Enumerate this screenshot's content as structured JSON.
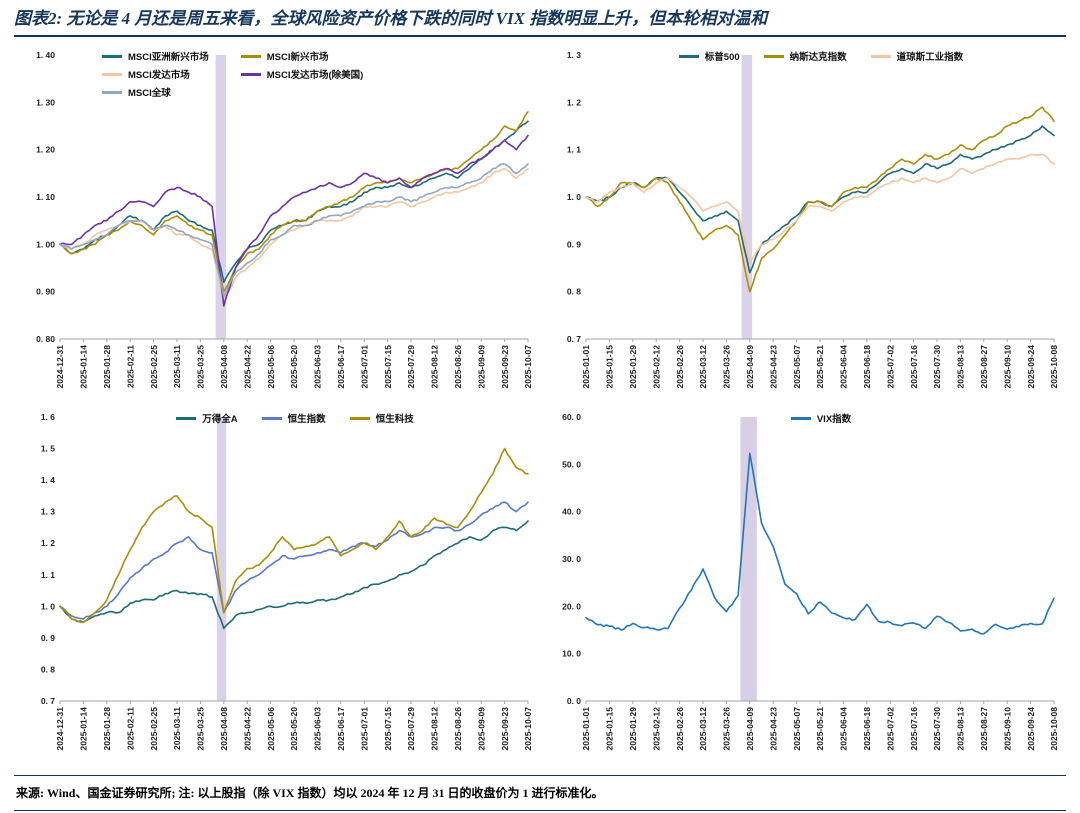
{
  "page": {
    "title": "图表2: 无论是 4 月还是周五来看，全球风险资产价格下跌的同时 VIX 指数明显上升，但本轮相对温和",
    "footer": "来源: Wind、国金证券研究所; 注: 以上股指（除 VIX 指数）均以 2024 年 12 月 31 日的收盘价为 1 进行标准化。",
    "accent_color": "#16365c"
  },
  "chart_data": [
    {
      "name": "msci-indices",
      "type": "line",
      "ylim": [
        0.8,
        1.4
      ],
      "yticks": [
        0.8,
        0.9,
        1.0,
        1.1,
        1.2,
        1.3,
        1.4
      ],
      "ytick_labels": [
        "0. 80",
        "0. 90",
        "1. 00",
        "1. 10",
        "1. 20",
        "1. 30",
        "1. 40"
      ],
      "xtick_every": 2,
      "highlight_band": {
        "from": 13.3,
        "to": 14.2,
        "from_date": "2025-04-02",
        "to_date": "2025-04-09",
        "color": "#cec3e0",
        "opacity": 0.75
      },
      "x_dates": [
        "2024-12-31",
        "2025-01-07",
        "2025-01-14",
        "2025-01-21",
        "2025-01-28",
        "2025-02-04",
        "2025-02-11",
        "2025-02-18",
        "2025-02-25",
        "2025-03-04",
        "2025-03-11",
        "2025-03-18",
        "2025-03-25",
        "2025-04-01",
        "2025-04-08",
        "2025-04-15",
        "2025-04-22",
        "2025-04-29",
        "2025-05-06",
        "2025-05-13",
        "2025-05-20",
        "2025-05-27",
        "2025-06-03",
        "2025-06-10",
        "2025-06-17",
        "2025-06-24",
        "2025-07-01",
        "2025-07-08",
        "2025-07-15",
        "2025-07-22",
        "2025-07-29",
        "2025-08-05",
        "2025-08-12",
        "2025-08-19",
        "2025-08-26",
        "2025-09-02",
        "2025-09-09",
        "2025-09-16",
        "2025-09-23",
        "2025-09-30",
        "2025-10-07"
      ],
      "series": [
        {
          "name": "MSCI亚洲新兴市场",
          "color": "#1d6a78",
          "values": [
            1.0,
            0.98,
            0.99,
            1.01,
            1.02,
            1.04,
            1.06,
            1.05,
            1.03,
            1.06,
            1.07,
            1.05,
            1.04,
            1.03,
            0.92,
            0.96,
            0.99,
            1.0,
            1.03,
            1.04,
            1.05,
            1.05,
            1.07,
            1.08,
            1.08,
            1.09,
            1.11,
            1.12,
            1.12,
            1.13,
            1.12,
            1.13,
            1.14,
            1.15,
            1.14,
            1.16,
            1.18,
            1.2,
            1.22,
            1.24,
            1.26
          ]
        },
        {
          "name": "MSCI新兴市场",
          "color": "#ab8d0a",
          "values": [
            1.0,
            0.98,
            0.99,
            1.0,
            1.02,
            1.03,
            1.05,
            1.04,
            1.02,
            1.05,
            1.06,
            1.04,
            1.03,
            1.02,
            0.9,
            0.95,
            0.98,
            0.99,
            1.02,
            1.04,
            1.05,
            1.05,
            1.07,
            1.08,
            1.09,
            1.1,
            1.12,
            1.13,
            1.13,
            1.14,
            1.13,
            1.14,
            1.15,
            1.16,
            1.16,
            1.18,
            1.2,
            1.22,
            1.25,
            1.24,
            1.28
          ]
        },
        {
          "name": "MSCI发达市场",
          "color": "#f2c6a2",
          "values": [
            1.0,
            0.99,
            1.0,
            1.02,
            1.03,
            1.04,
            1.05,
            1.05,
            1.03,
            1.04,
            1.02,
            1.02,
            1.0,
            0.99,
            0.88,
            0.93,
            0.95,
            0.97,
            1.0,
            1.02,
            1.03,
            1.04,
            1.05,
            1.05,
            1.05,
            1.06,
            1.08,
            1.08,
            1.08,
            1.09,
            1.08,
            1.09,
            1.1,
            1.11,
            1.11,
            1.12,
            1.13,
            1.15,
            1.16,
            1.14,
            1.16
          ]
        },
        {
          "name": "MSCI发达市场(除美国)",
          "color": "#7030a0",
          "values": [
            1.0,
            1.0,
            1.02,
            1.04,
            1.05,
            1.07,
            1.09,
            1.09,
            1.08,
            1.11,
            1.12,
            1.11,
            1.1,
            1.08,
            0.87,
            0.95,
            0.99,
            1.02,
            1.06,
            1.08,
            1.1,
            1.11,
            1.12,
            1.13,
            1.12,
            1.13,
            1.15,
            1.14,
            1.13,
            1.14,
            1.12,
            1.14,
            1.15,
            1.16,
            1.15,
            1.17,
            1.18,
            1.2,
            1.22,
            1.2,
            1.23
          ]
        },
        {
          "name": "MSCI全球",
          "color": "#8fa6c6",
          "values": [
            1.0,
            0.99,
            1.0,
            1.01,
            1.02,
            1.04,
            1.05,
            1.05,
            1.03,
            1.04,
            1.03,
            1.02,
            1.01,
            1.0,
            0.89,
            0.94,
            0.96,
            0.98,
            1.01,
            1.02,
            1.04,
            1.04,
            1.05,
            1.06,
            1.06,
            1.07,
            1.08,
            1.09,
            1.09,
            1.1,
            1.09,
            1.1,
            1.11,
            1.12,
            1.12,
            1.13,
            1.14,
            1.16,
            1.17,
            1.15,
            1.17
          ]
        }
      ]
    },
    {
      "name": "us-indices",
      "type": "line",
      "ylim": [
        0.7,
        1.3
      ],
      "yticks": [
        0.7,
        0.8,
        0.9,
        1.0,
        1.1,
        1.2,
        1.3
      ],
      "ytick_labels": [
        "0. 7",
        "0. 8",
        "0. 9",
        "1. 0",
        "1. 1",
        "1. 2",
        "1. 3"
      ],
      "xtick_every": 2,
      "highlight_band": {
        "from": 13.3,
        "to": 14.2,
        "from_date": "2025-04-02",
        "to_date": "2025-04-10",
        "color": "#cec3e0",
        "opacity": 0.75
      },
      "x_dates": [
        "2025-01-01",
        "2025-01-08",
        "2025-01-15",
        "2025-01-22",
        "2025-01-29",
        "2025-02-05",
        "2025-02-12",
        "2025-02-19",
        "2025-02-26",
        "2025-03-05",
        "2025-03-12",
        "2025-03-19",
        "2025-03-26",
        "2025-04-02",
        "2025-04-09",
        "2025-04-16",
        "2025-04-23",
        "2025-04-30",
        "2025-05-07",
        "2025-05-14",
        "2025-05-21",
        "2025-05-28",
        "2025-06-04",
        "2025-06-11",
        "2025-06-18",
        "2025-06-25",
        "2025-07-02",
        "2025-07-09",
        "2025-07-16",
        "2025-07-23",
        "2025-07-30",
        "2025-08-06",
        "2025-08-13",
        "2025-08-20",
        "2025-08-27",
        "2025-09-03",
        "2025-09-10",
        "2025-09-17",
        "2025-09-24",
        "2025-10-01",
        "2025-10-08"
      ],
      "series": [
        {
          "name": "标普500",
          "color": "#1d6a78",
          "values": [
            1.0,
            0.99,
            1.0,
            1.02,
            1.03,
            1.02,
            1.04,
            1.04,
            1.01,
            0.98,
            0.95,
            0.96,
            0.97,
            0.95,
            0.84,
            0.9,
            0.92,
            0.94,
            0.96,
            0.99,
            0.99,
            0.98,
            1.0,
            1.01,
            1.01,
            1.03,
            1.05,
            1.06,
            1.05,
            1.07,
            1.06,
            1.07,
            1.09,
            1.08,
            1.09,
            1.1,
            1.11,
            1.12,
            1.13,
            1.15,
            1.13
          ]
        },
        {
          "name": "纳斯达克指数",
          "color": "#ab8d0a",
          "values": [
            1.0,
            0.98,
            1.0,
            1.03,
            1.03,
            1.02,
            1.04,
            1.03,
            0.99,
            0.95,
            0.91,
            0.93,
            0.94,
            0.92,
            0.8,
            0.87,
            0.89,
            0.92,
            0.95,
            0.99,
            0.99,
            0.98,
            1.01,
            1.02,
            1.02,
            1.04,
            1.06,
            1.08,
            1.07,
            1.09,
            1.08,
            1.09,
            1.11,
            1.1,
            1.12,
            1.13,
            1.15,
            1.16,
            1.17,
            1.19,
            1.16
          ]
        },
        {
          "name": "道琼斯工业指数",
          "color": "#f2c6a2",
          "values": [
            1.0,
            0.99,
            1.01,
            1.02,
            1.03,
            1.01,
            1.03,
            1.04,
            1.02,
            1.0,
            0.97,
            0.98,
            0.99,
            0.97,
            0.86,
            0.9,
            0.91,
            0.93,
            0.95,
            0.98,
            0.98,
            0.97,
            0.99,
            1.0,
            1.0,
            1.02,
            1.03,
            1.04,
            1.03,
            1.04,
            1.03,
            1.04,
            1.06,
            1.05,
            1.06,
            1.07,
            1.08,
            1.08,
            1.09,
            1.09,
            1.07
          ]
        }
      ]
    },
    {
      "name": "china-hk-indices",
      "type": "line",
      "ylim": [
        0.7,
        1.6
      ],
      "yticks": [
        0.7,
        0.8,
        0.9,
        1.0,
        1.1,
        1.2,
        1.3,
        1.4,
        1.5,
        1.6
      ],
      "ytick_labels": [
        "0. 7",
        "0. 8",
        "0. 9",
        "1. 0",
        "1. 1",
        "1. 2",
        "1. 3",
        "1. 4",
        "1. 5",
        "1. 6"
      ],
      "xtick_every": 2,
      "highlight_band": {
        "from": 13.4,
        "to": 14.2,
        "from_date": "2025-04-03",
        "to_date": "2025-04-09",
        "color": "#cec3e0",
        "opacity": 0.75
      },
      "x_dates": [
        "2024-12-31",
        "2025-01-07",
        "2025-01-14",
        "2025-01-21",
        "2025-01-28",
        "2025-02-04",
        "2025-02-11",
        "2025-02-18",
        "2025-02-25",
        "2025-03-04",
        "2025-03-11",
        "2025-03-18",
        "2025-03-25",
        "2025-04-01",
        "2025-04-08",
        "2025-04-15",
        "2025-04-22",
        "2025-04-29",
        "2025-05-06",
        "2025-05-13",
        "2025-05-20",
        "2025-05-27",
        "2025-06-03",
        "2025-06-10",
        "2025-06-17",
        "2025-06-24",
        "2025-07-01",
        "2025-07-08",
        "2025-07-15",
        "2025-07-22",
        "2025-07-29",
        "2025-08-05",
        "2025-08-12",
        "2025-08-19",
        "2025-08-26",
        "2025-09-02",
        "2025-09-09",
        "2025-09-16",
        "2025-09-23",
        "2025-09-30",
        "2025-10-07"
      ],
      "series": [
        {
          "name": "万得全A",
          "color": "#1d6a78",
          "values": [
            1.0,
            0.96,
            0.95,
            0.97,
            0.98,
            0.98,
            1.01,
            1.02,
            1.02,
            1.04,
            1.05,
            1.04,
            1.04,
            1.03,
            0.93,
            0.97,
            0.98,
            0.99,
            1.0,
            1.0,
            1.01,
            1.01,
            1.02,
            1.02,
            1.03,
            1.04,
            1.06,
            1.07,
            1.08,
            1.1,
            1.11,
            1.13,
            1.16,
            1.18,
            1.2,
            1.22,
            1.21,
            1.24,
            1.25,
            1.24,
            1.27
          ]
        },
        {
          "name": "恒生指数",
          "color": "#5878c8",
          "values": [
            1.0,
            0.97,
            0.96,
            0.98,
            1.0,
            1.04,
            1.09,
            1.12,
            1.15,
            1.17,
            1.2,
            1.22,
            1.18,
            1.17,
            0.98,
            1.05,
            1.08,
            1.1,
            1.13,
            1.16,
            1.15,
            1.16,
            1.17,
            1.18,
            1.17,
            1.19,
            1.2,
            1.19,
            1.21,
            1.24,
            1.22,
            1.23,
            1.25,
            1.25,
            1.24,
            1.26,
            1.29,
            1.31,
            1.33,
            1.3,
            1.33
          ]
        },
        {
          "name": "恒生科技",
          "color": "#ab8d0a",
          "values": [
            1.0,
            0.96,
            0.95,
            0.98,
            1.02,
            1.1,
            1.18,
            1.25,
            1.3,
            1.33,
            1.35,
            1.3,
            1.28,
            1.25,
            0.98,
            1.08,
            1.12,
            1.13,
            1.17,
            1.22,
            1.18,
            1.19,
            1.2,
            1.22,
            1.16,
            1.18,
            1.2,
            1.18,
            1.22,
            1.27,
            1.22,
            1.24,
            1.28,
            1.26,
            1.25,
            1.3,
            1.36,
            1.42,
            1.5,
            1.44,
            1.42
          ]
        }
      ]
    },
    {
      "name": "vix-index",
      "type": "line",
      "ylim": [
        0,
        60
      ],
      "yticks": [
        0,
        10,
        20,
        30,
        40,
        50,
        60
      ],
      "ytick_labels": [
        "0. 0",
        "10. 0",
        "20. 0",
        "30. 0",
        "40. 0",
        "50. 0",
        "60. 0"
      ],
      "xtick_every": 2,
      "highlight_band": {
        "from": 13.2,
        "to": 14.6,
        "from_date": "2025-04-02",
        "to_date": "2025-04-14",
        "color": "#cec3e0",
        "opacity": 0.8
      },
      "x_dates": [
        "2025-01-01",
        "2025-01-08",
        "2025-01-15",
        "2025-01-22",
        "2025-01-29",
        "2025-02-05",
        "2025-02-12",
        "2025-02-19",
        "2025-02-26",
        "2025-03-05",
        "2025-03-12",
        "2025-03-19",
        "2025-03-26",
        "2025-04-02",
        "2025-04-09",
        "2025-04-16",
        "2025-04-23",
        "2025-04-30",
        "2025-05-07",
        "2025-05-14",
        "2025-05-21",
        "2025-05-28",
        "2025-06-04",
        "2025-06-11",
        "2025-06-18",
        "2025-06-25",
        "2025-07-02",
        "2025-07-09",
        "2025-07-16",
        "2025-07-23",
        "2025-07-30",
        "2025-08-06",
        "2025-08-13",
        "2025-08-20",
        "2025-08-27",
        "2025-09-03",
        "2025-09-10",
        "2025-09-17",
        "2025-09-24",
        "2025-10-01",
        "2025-10-08"
      ],
      "series": [
        {
          "name": "VIX指数",
          "color": "#2176b5",
          "values": [
            17.6,
            16.1,
            15.8,
            15.0,
            16.4,
            15.5,
            15.1,
            15.3,
            19.6,
            23.4,
            27.9,
            21.8,
            18.9,
            22.3,
            52.3,
            37.6,
            32.6,
            24.7,
            22.7,
            18.4,
            20.9,
            18.6,
            17.6,
            17.2,
            20.4,
            16.8,
            16.6,
            15.9,
            16.5,
            15.3,
            17.9,
            16.6,
            14.8,
            15.2,
            14.2,
            16.2,
            15.2,
            15.7,
            16.4,
            16.3,
            21.7
          ]
        }
      ]
    }
  ]
}
